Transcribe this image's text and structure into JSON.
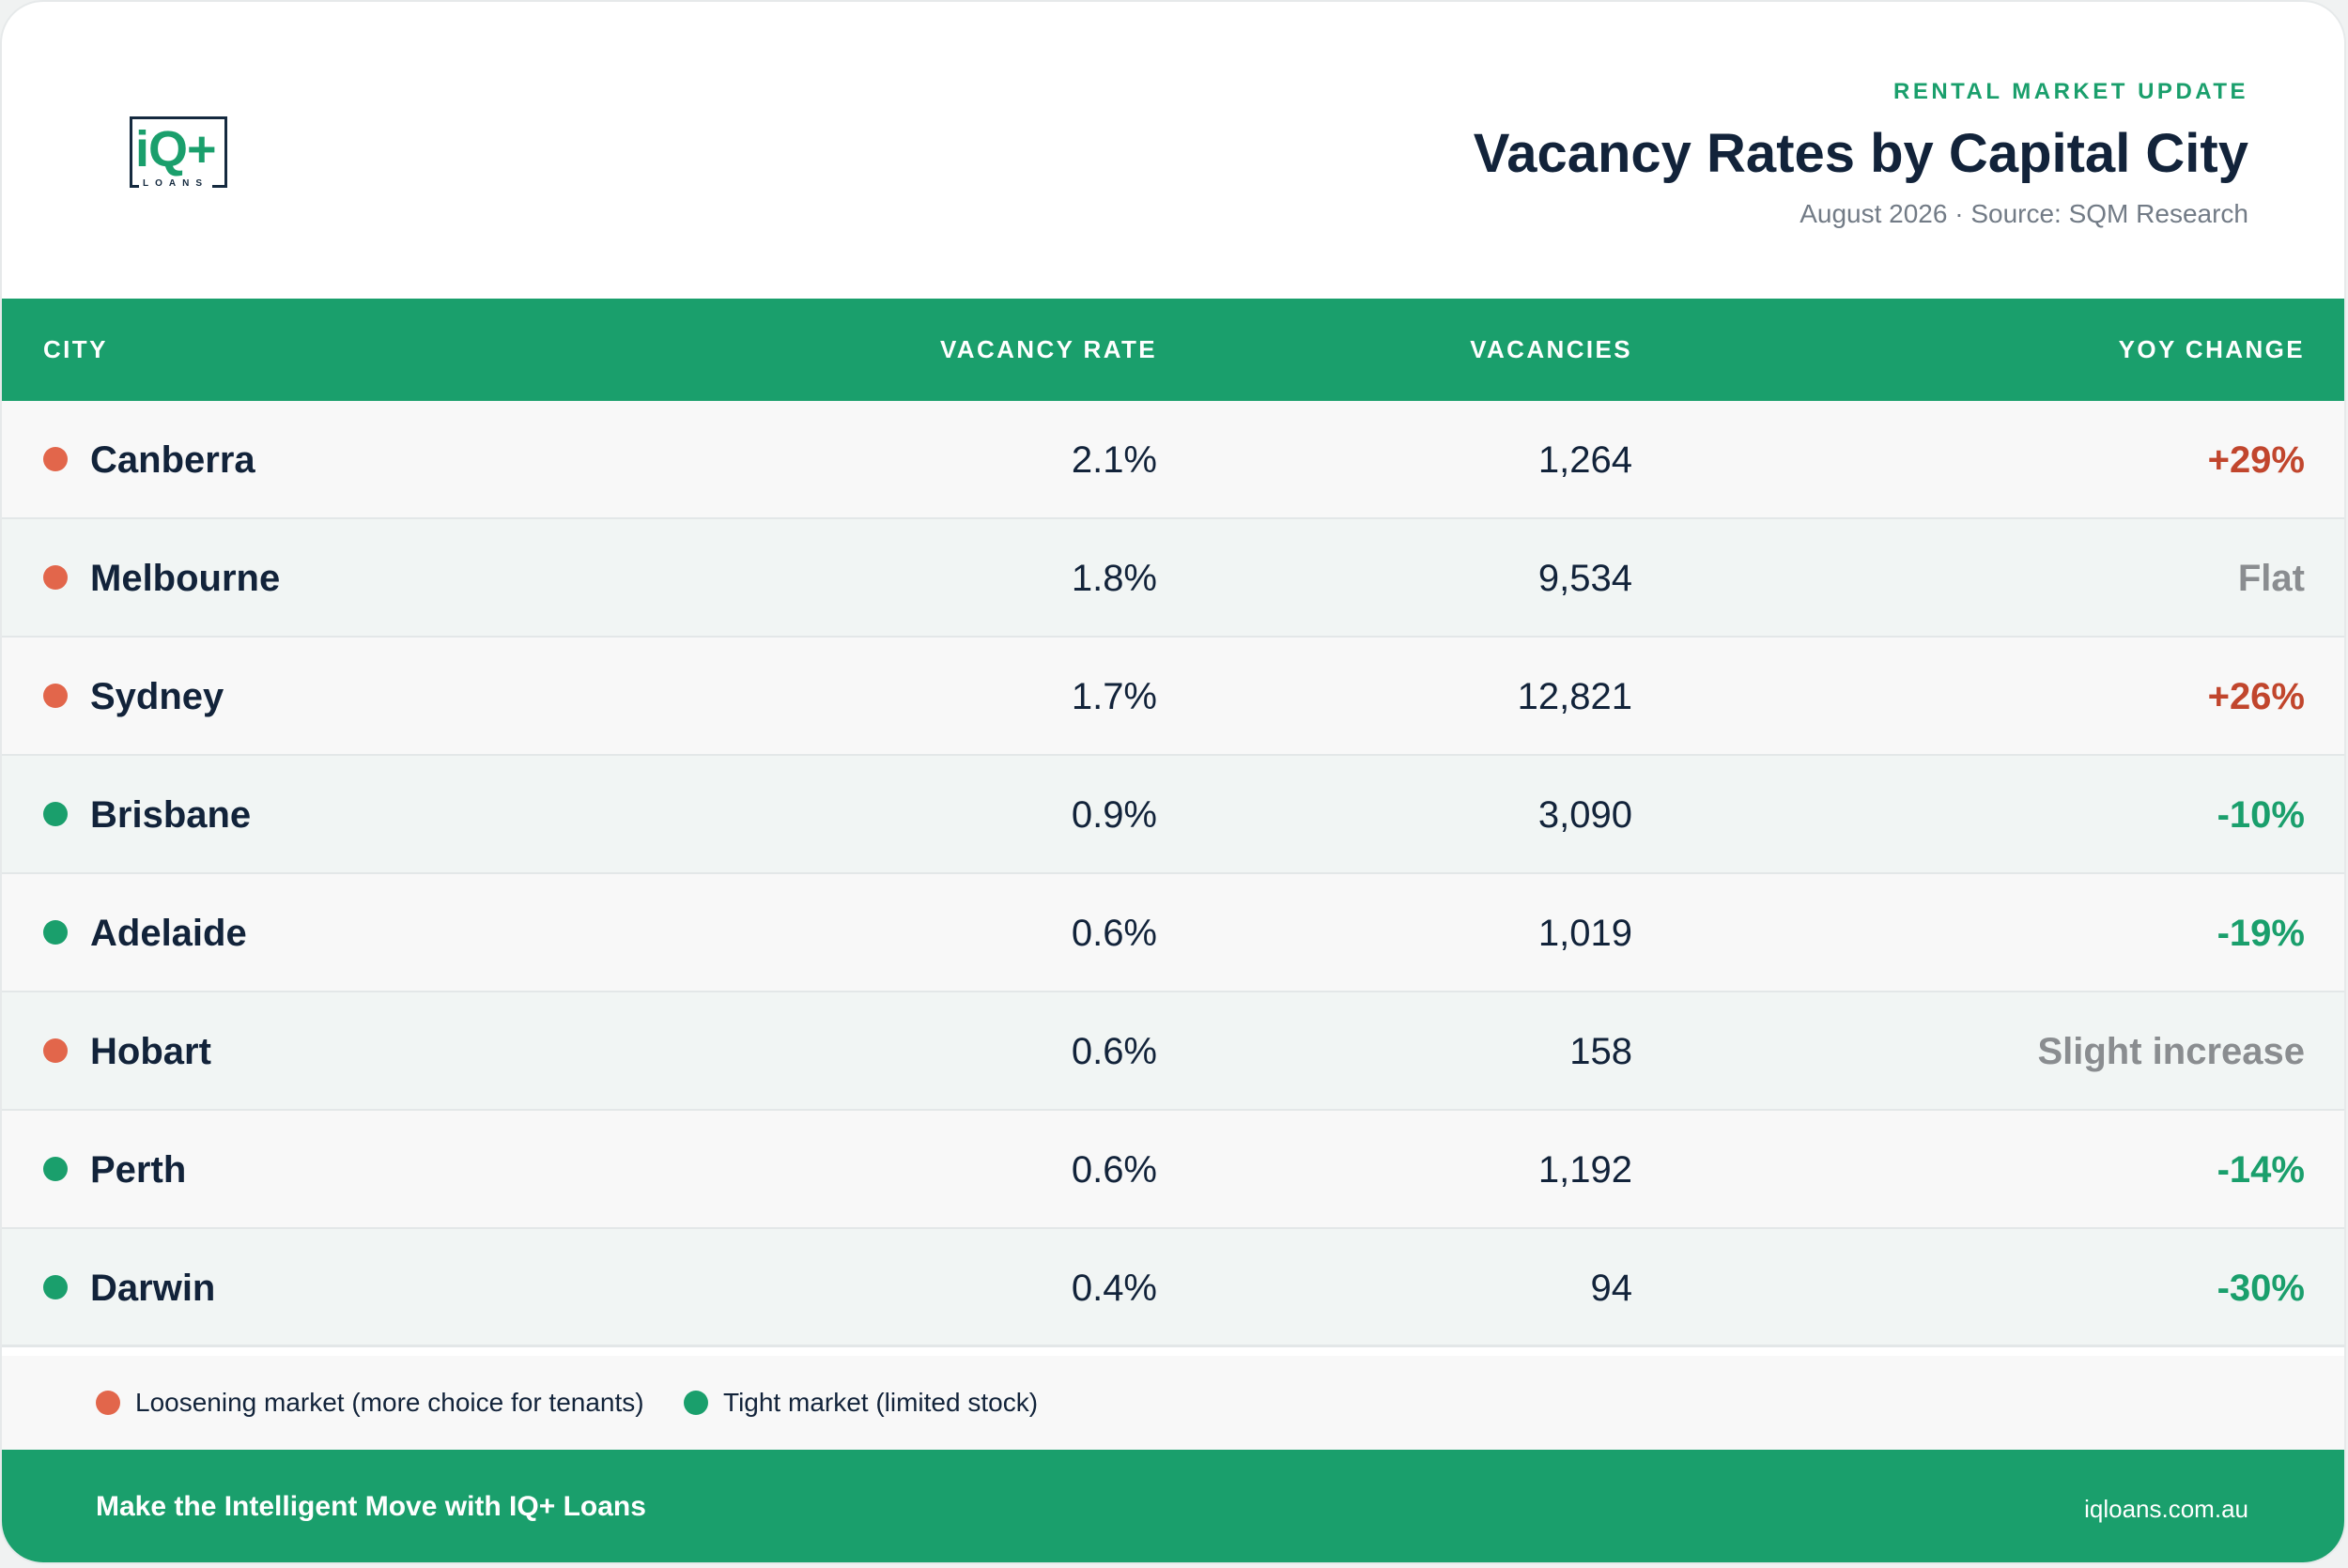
{
  "brand": {
    "logo_text": "iQ+",
    "logo_sub": "LOANS"
  },
  "header": {
    "eyebrow": "RENTAL MARKET UPDATE",
    "title": "Vacancy Rates by Capital City",
    "subtitle": "August 2026 · Source: SQM Research"
  },
  "table": {
    "columns": {
      "city": "CITY",
      "rate": "VACANCY RATE",
      "vacancies": "VACANCIES",
      "yoy": "YOY CHANGE"
    },
    "rows": [
      {
        "city": "Canberra",
        "rate": "2.1%",
        "vacancies": "1,264",
        "yoy": "+29%",
        "market": "loosening",
        "trend": "up"
      },
      {
        "city": "Melbourne",
        "rate": "1.8%",
        "vacancies": "9,534",
        "yoy": "Flat",
        "market": "loosening",
        "trend": "neutral"
      },
      {
        "city": "Sydney",
        "rate": "1.7%",
        "vacancies": "12,821",
        "yoy": "+26%",
        "market": "loosening",
        "trend": "up"
      },
      {
        "city": "Brisbane",
        "rate": "0.9%",
        "vacancies": "3,090",
        "yoy": "-10%",
        "market": "tight",
        "trend": "down"
      },
      {
        "city": "Adelaide",
        "rate": "0.6%",
        "vacancies": "1,019",
        "yoy": "-19%",
        "market": "tight",
        "trend": "down"
      },
      {
        "city": "Hobart",
        "rate": "0.6%",
        "vacancies": "158",
        "yoy": "Slight increase",
        "market": "loosening",
        "trend": "neutral"
      },
      {
        "city": "Perth",
        "rate": "0.6%",
        "vacancies": "1,192",
        "yoy": "-14%",
        "market": "tight",
        "trend": "down"
      },
      {
        "city": "Darwin",
        "rate": "0.4%",
        "vacancies": "94",
        "yoy": "-30%",
        "market": "tight",
        "trend": "down"
      }
    ]
  },
  "legend": {
    "loosening": "Loosening market (more choice for tenants)",
    "tight": "Tight market (limited stock)"
  },
  "footer": {
    "tagline": "Make the Intelligent Move with IQ+ Loans",
    "url": "iqloans.com.au"
  },
  "colors": {
    "brand_green": "#1a9f6c",
    "navy": "#12233a",
    "loosening_dot": "#e2664b",
    "increase_text": "#c1462d",
    "neutral_text": "#8a8d90"
  }
}
